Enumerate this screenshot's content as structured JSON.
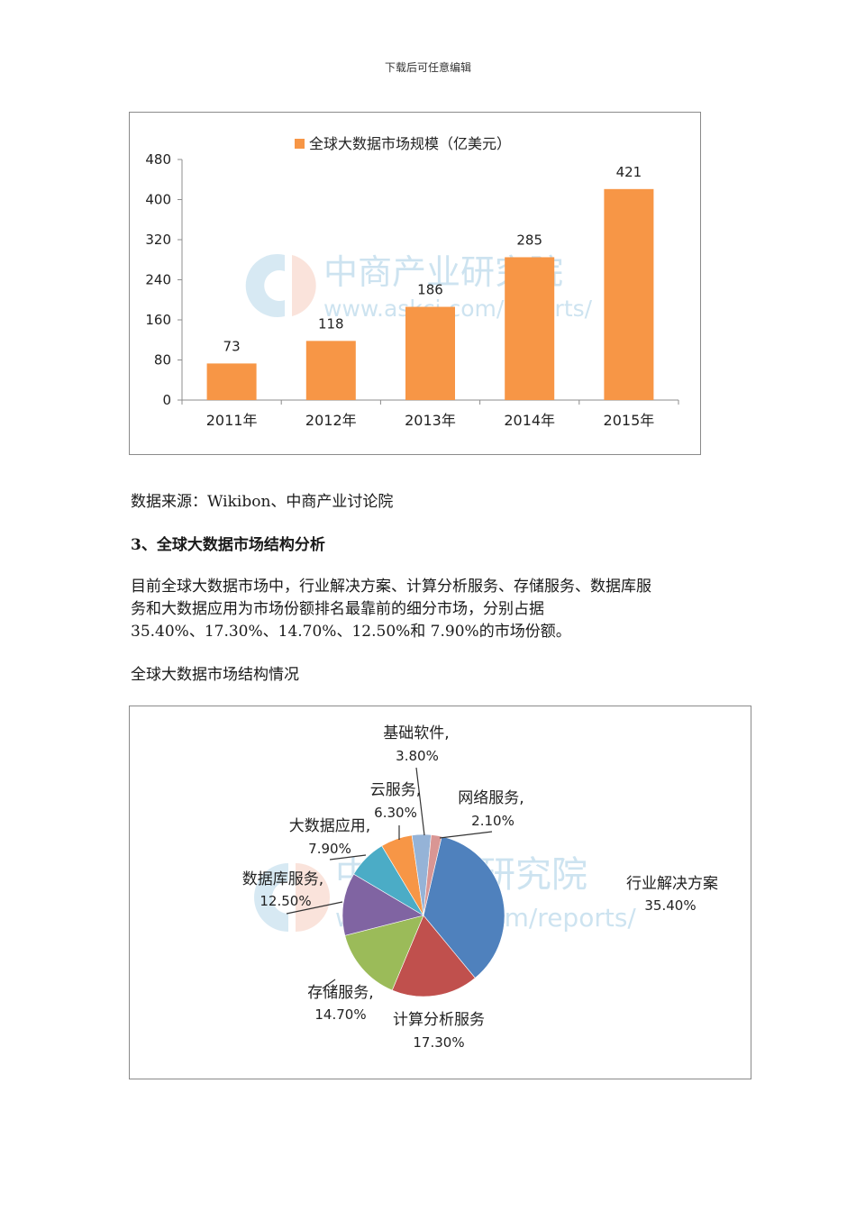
{
  "header": {
    "note": "下载后可任意编辑"
  },
  "bar_figure": {
    "legend_label": "全球大数据市场规模（亿美元）",
    "legend_color": "#f79646",
    "bar_color": "#f79646",
    "watermark": {
      "brand": "中商产业研究院",
      "url": "www.askci.com/reports/"
    },
    "y_ticks": [
      "0",
      "80",
      "160",
      "240",
      "320",
      "400",
      "480"
    ],
    "categories": [
      "2011年",
      "2012年",
      "2013年",
      "2014年",
      "2015年"
    ],
    "value_labels": [
      "73",
      "118",
      "186",
      "285",
      "421"
    ]
  },
  "source_line": "数据来源：Wikibon、中商产业讨论院",
  "section_heading": "3、全球大数据市场结构分析",
  "body_paragraph": {
    "line1": "目前全球大数据市场中，行业解决方案、计算分析服务、存储服务、数据库服",
    "line2": "务和大数据应用为市场份额排名最靠前的细分市场，分别占据",
    "line3": "35.40%、17.30%、14.70%、12.50%和 7.90%的市场份额。"
  },
  "pie_caption": "全球大数据市场结构情况",
  "pie_figure": {
    "watermark": {
      "brand": "中商产业研究院",
      "url": "www.askci.com/reports/"
    },
    "labels": [
      {
        "name": "行业解决方案",
        "pct": "35.40%"
      },
      {
        "name": "计算分析服务",
        "pct": "17.30%"
      },
      {
        "name": "存储服务,",
        "pct": "14.70%"
      },
      {
        "name": "数据库服务,",
        "pct": "12.50%"
      },
      {
        "name": "大数据应用,",
        "pct": "7.90%"
      },
      {
        "name": "云服务,",
        "pct": "6.30%"
      },
      {
        "name": "基础软件,",
        "pct": "3.80%"
      },
      {
        "name": "网络服务,",
        "pct": "2.10%"
      }
    ]
  },
  "chart_data": [
    {
      "type": "bar",
      "title": "全球大数据市场规模（亿美元）",
      "categories": [
        "2011年",
        "2012年",
        "2013年",
        "2014年",
        "2015年"
      ],
      "series": [
        {
          "name": "全球大数据市场规模（亿美元）",
          "values": [
            73,
            118,
            186,
            285,
            421
          ],
          "color": "#f79646"
        }
      ],
      "xlabel": "",
      "ylabel": "",
      "ylim": [
        0,
        480
      ],
      "yticks": [
        0,
        80,
        160,
        240,
        320,
        400,
        480
      ],
      "grid": false,
      "legend_position": "top",
      "data_labels": true
    },
    {
      "type": "pie",
      "title": "全球大数据市场结构情况",
      "categories": [
        "行业解决方案",
        "计算分析服务",
        "存储服务",
        "数据库服务",
        "大数据应用",
        "云服务",
        "基础软件",
        "网络服务"
      ],
      "values": [
        35.4,
        17.3,
        14.7,
        12.5,
        7.9,
        6.3,
        3.8,
        2.1
      ],
      "colors": [
        "#4f81bd",
        "#c0504d",
        "#9bbb59",
        "#8064a2",
        "#4bacc6",
        "#f79646",
        "#95b3d7",
        "#d99694"
      ],
      "unit": "%",
      "data_labels": true
    }
  ]
}
